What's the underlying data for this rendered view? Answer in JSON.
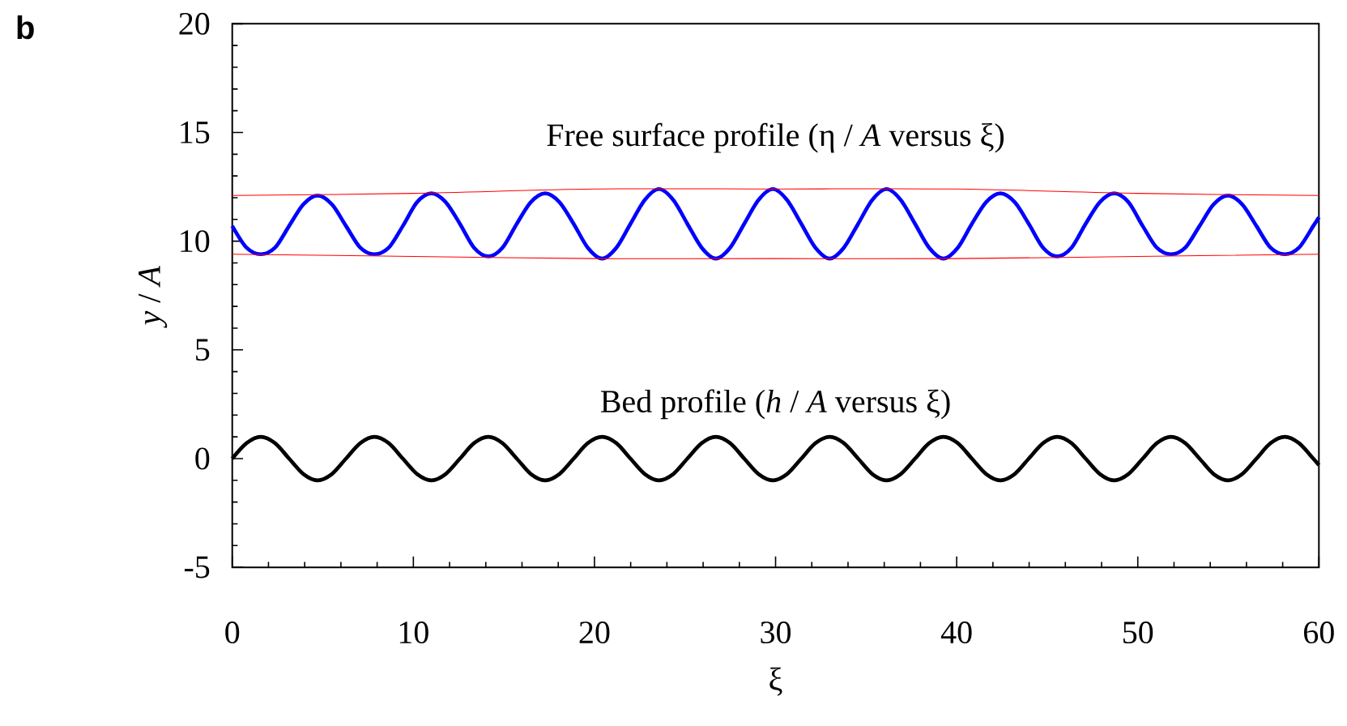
{
  "chart_data": {
    "type": "line",
    "title": "b",
    "xlabel": "ξ",
    "ylabel": "*y* / *A*",
    "xlim": [
      0,
      60
    ],
    "ylim": [
      -5,
      20
    ],
    "xticks": [
      0,
      {
        "value": 2,
        "label": null
      },
      {
        "value": 4,
        "label": null
      },
      {
        "value": 6,
        "label": null
      },
      {
        "value": 8,
        "label": null
      },
      10,
      {
        "value": 12,
        "label": null
      },
      {
        "value": 14,
        "label": null
      },
      {
        "value": 16,
        "label": null
      },
      {
        "value": 18,
        "label": null
      },
      20,
      {
        "value": 22,
        "label": null
      },
      {
        "value": 24,
        "label": null
      },
      {
        "value": 26,
        "label": null
      },
      {
        "value": 28,
        "label": null
      },
      30,
      {
        "value": 32,
        "label": null
      },
      {
        "value": 34,
        "label": null
      },
      {
        "value": 36,
        "label": null
      },
      {
        "value": 38,
        "label": null
      },
      40,
      {
        "value": 42,
        "label": null
      },
      {
        "value": 44,
        "label": null
      },
      {
        "value": 46,
        "label": null
      },
      {
        "value": 48,
        "label": null
      },
      50,
      {
        "value": 52,
        "label": null
      },
      {
        "value": 54,
        "label": null
      },
      {
        "value": 56,
        "label": null
      },
      {
        "value": 58,
        "label": null
      },
      60
    ],
    "yticks": [
      -5,
      {
        "value": -4,
        "label": null
      },
      {
        "value": -3,
        "label": null
      },
      {
        "value": -2,
        "label": null
      },
      {
        "value": -1,
        "label": null
      },
      0,
      {
        "value": 1,
        "label": null
      },
      {
        "value": 2,
        "label": null
      },
      {
        "value": 3,
        "label": null
      },
      {
        "value": 4,
        "label": null
      },
      5,
      {
        "value": 6,
        "label": null
      },
      {
        "value": 7,
        "label": null
      },
      {
        "value": 8,
        "label": null
      },
      {
        "value": 9,
        "label": null
      },
      10,
      {
        "value": 11,
        "label": null
      },
      {
        "value": 12,
        "label": null
      },
      {
        "value": 13,
        "label": null
      },
      {
        "value": 14,
        "label": null
      },
      15,
      {
        "value": 16,
        "label": null
      },
      {
        "value": 17,
        "label": null
      },
      {
        "value": 18,
        "label": null
      },
      {
        "value": 19,
        "label": null
      },
      20
    ],
    "grid": false,
    "marker": "none",
    "line_style": "solid",
    "annotations": [
      "Free surface profile (η / *A* versus ξ)",
      "Bed profile (*h* / *A* versus ξ)"
    ],
    "series": [
      {
        "color": "#0000ff",
        "x": [
          0,
          0.79,
          1.57,
          2.36,
          3.14,
          3.93,
          4.71,
          5.5,
          6.28,
          7.07,
          7.85,
          8.64,
          9.42,
          10.21,
          11.0,
          11.78,
          12.57,
          13.35,
          14.14,
          14.92,
          15.71,
          16.49,
          17.28,
          18.06,
          18.85,
          19.63,
          20.42,
          21.21,
          21.99,
          22.78,
          23.56,
          24.35,
          25.13,
          25.92,
          26.7,
          27.49,
          28.27,
          29.06,
          29.85,
          30.63,
          31.42,
          32.2,
          32.99,
          33.77,
          34.56,
          35.34,
          36.13,
          36.91,
          37.7,
          38.48,
          39.27,
          40.06,
          40.84,
          41.63,
          42.41,
          43.2,
          43.98,
          44.77,
          45.55,
          46.34,
          47.12,
          47.91,
          48.69,
          49.48,
          50.27,
          51.05,
          51.84,
          52.62,
          53.41,
          54.19,
          54.98,
          55.76,
          56.55,
          57.33,
          58.12,
          58.9,
          59.69,
          60
        ],
        "values": [
          10.7,
          9.7,
          9.4,
          9.7,
          10.7,
          11.7,
          12.1,
          11.7,
          10.7,
          9.7,
          9.4,
          9.7,
          10.7,
          11.8,
          12.2,
          11.8,
          10.8,
          9.7,
          9.3,
          9.7,
          10.8,
          11.8,
          12.2,
          11.8,
          10.8,
          9.7,
          9.2,
          9.7,
          10.8,
          11.9,
          12.4,
          11.9,
          10.8,
          9.7,
          9.2,
          9.7,
          10.8,
          11.9,
          12.4,
          11.9,
          10.8,
          9.7,
          9.2,
          9.7,
          10.8,
          11.9,
          12.4,
          11.9,
          10.8,
          9.7,
          9.2,
          9.7,
          10.8,
          11.8,
          12.2,
          11.8,
          10.8,
          9.7,
          9.3,
          9.7,
          10.8,
          11.8,
          12.2,
          11.8,
          10.7,
          9.7,
          9.4,
          9.7,
          10.7,
          11.7,
          12.1,
          11.7,
          10.7,
          9.7,
          9.4,
          9.7,
          10.7,
          11.1
        ]
      },
      {
        "color": "#000000",
        "x": [
          0,
          0.79,
          1.57,
          2.36,
          3.14,
          3.93,
          4.71,
          5.5,
          6.28,
          7.07,
          7.85,
          8.64,
          9.42,
          10.21,
          11.0,
          11.78,
          12.57,
          13.35,
          14.14,
          14.92,
          15.71,
          16.49,
          17.28,
          18.06,
          18.85,
          19.63,
          20.42,
          21.21,
          21.99,
          22.78,
          23.56,
          24.35,
          25.13,
          25.92,
          26.7,
          27.49,
          28.27,
          29.06,
          29.85,
          30.63,
          31.42,
          32.2,
          32.99,
          33.77,
          34.56,
          35.34,
          36.13,
          36.91,
          37.7,
          38.48,
          39.27,
          40.06,
          40.84,
          41.63,
          42.41,
          43.2,
          43.98,
          44.77,
          45.55,
          46.34,
          47.12,
          47.91,
          48.69,
          49.48,
          50.27,
          51.05,
          51.84,
          52.62,
          53.41,
          54.19,
          54.98,
          55.76,
          56.55,
          57.33,
          58.12,
          58.9,
          59.69,
          60
        ],
        "values": [
          0,
          0.71,
          1,
          0.71,
          0,
          -0.71,
          -1,
          -0.71,
          0,
          0.71,
          1,
          0.71,
          0,
          -0.71,
          -1,
          -0.71,
          0,
          0.71,
          1,
          0.71,
          0,
          -0.71,
          -1,
          -0.71,
          0,
          0.71,
          1,
          0.71,
          0,
          -0.71,
          -1,
          -0.71,
          0,
          0.71,
          1,
          0.71,
          0,
          -0.71,
          -1,
          -0.71,
          0,
          0.71,
          1,
          0.71,
          0,
          -0.71,
          -1,
          -0.71,
          0,
          0.71,
          1,
          0.71,
          0,
          -0.71,
          -1,
          -0.71,
          0,
          0.71,
          1,
          0.71,
          0,
          -0.71,
          -1,
          -0.71,
          0,
          0.71,
          1,
          0.71,
          0,
          -0.71,
          -1,
          -0.71,
          0,
          0.71,
          1,
          0.71,
          0,
          -0.3
        ]
      },
      {
        "color": "#ff0000",
        "x": [
          0,
          10,
          20,
          30,
          40,
          50,
          60
        ],
        "values": [
          12.1,
          12.2,
          12.4,
          12.4,
          12.4,
          12.2,
          12.1
        ]
      },
      {
        "color": "#ff0000",
        "x": [
          0,
          10,
          20,
          30,
          40,
          50,
          60
        ],
        "values": [
          9.4,
          9.3,
          9.2,
          9.2,
          9.2,
          9.3,
          9.4
        ]
      }
    ]
  }
}
